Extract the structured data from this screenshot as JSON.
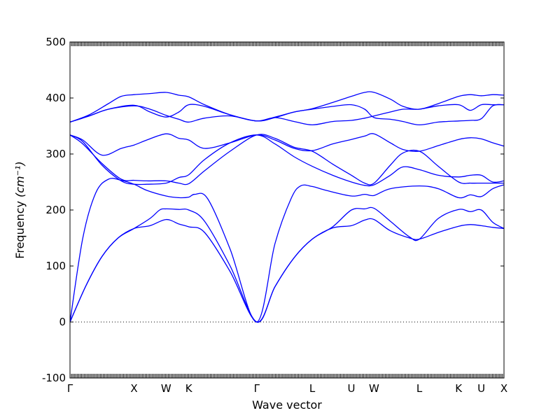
{
  "chart_data": {
    "type": "line",
    "xlabel": "Wave vector",
    "ylabel_text": "Frequency",
    "ylabel_unit": "(cm⁻¹)",
    "ylim": [
      -100,
      500
    ],
    "yticks": [
      -100,
      0,
      100,
      200,
      300,
      400,
      500
    ],
    "zero_line": true,
    "line_color": "#0000ff",
    "kpoints": [
      {
        "label": "Γ",
        "x": 0.0
      },
      {
        "label": "X",
        "x": 1.0
      },
      {
        "label": "W",
        "x": 1.5
      },
      {
        "label": "K",
        "x": 1.854
      },
      {
        "label": "Γ",
        "x": 2.915
      },
      {
        "label": "L",
        "x": 3.781
      },
      {
        "label": "U",
        "x": 4.393
      },
      {
        "label": "W",
        "x": 4.747
      },
      {
        "label": "L",
        "x": 5.454
      },
      {
        "label": "K",
        "x": 6.067
      },
      {
        "label": "U",
        "x": 6.421
      },
      {
        "label": "X",
        "x": 6.775
      }
    ],
    "series": [
      {
        "values": [
          [
            0,
            0
          ],
          [
            0.25,
            65
          ],
          [
            0.5,
            117
          ],
          [
            0.75,
            150
          ],
          [
            1,
            167
          ],
          [
            1.25,
            172
          ],
          [
            1.5,
            183
          ],
          [
            1.7,
            175
          ],
          [
            1.854,
            170
          ],
          [
            2.1,
            160
          ],
          [
            2.5,
            90
          ],
          [
            2.915,
            0
          ],
          [
            3.2,
            63
          ],
          [
            3.5,
            115
          ],
          [
            3.781,
            148
          ],
          [
            4.1,
            168
          ],
          [
            4.393,
            172
          ],
          [
            4.6,
            182
          ],
          [
            4.747,
            183
          ],
          [
            5.0,
            163
          ],
          [
            5.3,
            150
          ],
          [
            5.454,
            148
          ],
          [
            5.75,
            160
          ],
          [
            6.067,
            171
          ],
          [
            6.25,
            174
          ],
          [
            6.421,
            172
          ],
          [
            6.6,
            169
          ],
          [
            6.775,
            167
          ]
        ]
      },
      {
        "values": [
          [
            0,
            0
          ],
          [
            0.25,
            65
          ],
          [
            0.5,
            117
          ],
          [
            0.75,
            150
          ],
          [
            1,
            167
          ],
          [
            1.25,
            185
          ],
          [
            1.4,
            200
          ],
          [
            1.5,
            202
          ],
          [
            1.7,
            201
          ],
          [
            1.854,
            200
          ],
          [
            2.1,
            180
          ],
          [
            2.5,
            100
          ],
          [
            2.915,
            0
          ],
          [
            3.2,
            63
          ],
          [
            3.5,
            115
          ],
          [
            3.781,
            148
          ],
          [
            4.1,
            170
          ],
          [
            4.393,
            200
          ],
          [
            4.6,
            202
          ],
          [
            4.747,
            203
          ],
          [
            5.0,
            180
          ],
          [
            5.3,
            152
          ],
          [
            5.454,
            148
          ],
          [
            5.75,
            185
          ],
          [
            6.067,
            201
          ],
          [
            6.25,
            197
          ],
          [
            6.421,
            200
          ],
          [
            6.6,
            178
          ],
          [
            6.775,
            167
          ]
        ]
      },
      {
        "values": [
          [
            0,
            0
          ],
          [
            0.2,
            150
          ],
          [
            0.4,
            230
          ],
          [
            0.6,
            255
          ],
          [
            0.8,
            253
          ],
          [
            1,
            246
          ],
          [
            1.2,
            235
          ],
          [
            1.5,
            225
          ],
          [
            1.7,
            222
          ],
          [
            1.854,
            223
          ],
          [
            1.95,
            228
          ],
          [
            2.15,
            220
          ],
          [
            2.5,
            130
          ],
          [
            2.915,
            0
          ],
          [
            3.2,
            140
          ],
          [
            3.45,
            220
          ],
          [
            3.6,
            243
          ],
          [
            3.781,
            242
          ],
          [
            4.0,
            235
          ],
          [
            4.393,
            225
          ],
          [
            4.6,
            228
          ],
          [
            4.747,
            226
          ],
          [
            5.0,
            238
          ],
          [
            5.454,
            243
          ],
          [
            5.75,
            238
          ],
          [
            6.067,
            222
          ],
          [
            6.25,
            227
          ],
          [
            6.421,
            224
          ],
          [
            6.6,
            238
          ],
          [
            6.775,
            245
          ]
        ]
      },
      {
        "values": [
          [
            0,
            334
          ],
          [
            0.2,
            322
          ],
          [
            0.5,
            280
          ],
          [
            0.8,
            252
          ],
          [
            1,
            246
          ],
          [
            1.2,
            246
          ],
          [
            1.5,
            248
          ],
          [
            1.7,
            258
          ],
          [
            1.854,
            263
          ],
          [
            2.1,
            290
          ],
          [
            2.5,
            320
          ],
          [
            2.915,
            334
          ],
          [
            3.2,
            318
          ],
          [
            3.5,
            295
          ],
          [
            3.781,
            278
          ],
          [
            4.1,
            262
          ],
          [
            4.393,
            250
          ],
          [
            4.6,
            244
          ],
          [
            4.747,
            245
          ],
          [
            5.0,
            262
          ],
          [
            5.2,
            277
          ],
          [
            5.454,
            272
          ],
          [
            5.75,
            262
          ],
          [
            6.067,
            259
          ],
          [
            6.25,
            262
          ],
          [
            6.421,
            262
          ],
          [
            6.6,
            250
          ],
          [
            6.775,
            252
          ]
        ]
      },
      {
        "values": [
          [
            0,
            334
          ],
          [
            0.2,
            325
          ],
          [
            0.5,
            298
          ],
          [
            0.8,
            310
          ],
          [
            1,
            316
          ],
          [
            1.2,
            325
          ],
          [
            1.5,
            336
          ],
          [
            1.7,
            328
          ],
          [
            1.854,
            325
          ],
          [
            2.1,
            310
          ],
          [
            2.5,
            320
          ],
          [
            2.915,
            334
          ],
          [
            3.2,
            325
          ],
          [
            3.5,
            310
          ],
          [
            3.781,
            306
          ],
          [
            4.1,
            318
          ],
          [
            4.393,
            326
          ],
          [
            4.6,
            332
          ],
          [
            4.747,
            336
          ],
          [
            5.0,
            320
          ],
          [
            5.2,
            308
          ],
          [
            5.454,
            305
          ],
          [
            5.75,
            315
          ],
          [
            6.067,
            326
          ],
          [
            6.25,
            329
          ],
          [
            6.421,
            327
          ],
          [
            6.6,
            320
          ],
          [
            6.775,
            314
          ]
        ]
      },
      {
        "values": [
          [
            0,
            334
          ],
          [
            0.2,
            318
          ],
          [
            0.5,
            283
          ],
          [
            0.8,
            255
          ],
          [
            1,
            253
          ],
          [
            1.2,
            252
          ],
          [
            1.5,
            252
          ],
          [
            1.7,
            248
          ],
          [
            1.854,
            247
          ],
          [
            2.1,
            270
          ],
          [
            2.5,
            305
          ],
          [
            2.915,
            334
          ],
          [
            3.2,
            328
          ],
          [
            3.5,
            312
          ],
          [
            3.781,
            305
          ],
          [
            4.1,
            282
          ],
          [
            4.393,
            262
          ],
          [
            4.6,
            248
          ],
          [
            4.747,
            248
          ],
          [
            5.0,
            280
          ],
          [
            5.2,
            302
          ],
          [
            5.454,
            305
          ],
          [
            5.75,
            278
          ],
          [
            6.067,
            250
          ],
          [
            6.25,
            248
          ],
          [
            6.421,
            248
          ],
          [
            6.6,
            248
          ],
          [
            6.775,
            248
          ]
        ]
      },
      {
        "values": [
          [
            0,
            357
          ],
          [
            0.3,
            368
          ],
          [
            0.6,
            380
          ],
          [
            1,
            387
          ],
          [
            1.25,
            375
          ],
          [
            1.5,
            366
          ],
          [
            1.7,
            375
          ],
          [
            1.854,
            388
          ],
          [
            2.1,
            385
          ],
          [
            2.5,
            370
          ],
          [
            2.915,
            359
          ],
          [
            3.2,
            365
          ],
          [
            3.5,
            375
          ],
          [
            3.781,
            380
          ],
          [
            4.1,
            385
          ],
          [
            4.393,
            388
          ],
          [
            4.6,
            380
          ],
          [
            4.747,
            365
          ],
          [
            5.0,
            362
          ],
          [
            5.2,
            358
          ],
          [
            5.454,
            352
          ],
          [
            5.75,
            357
          ],
          [
            6.067,
            359
          ],
          [
            6.25,
            360
          ],
          [
            6.421,
            363
          ],
          [
            6.6,
            386
          ],
          [
            6.775,
            388
          ]
        ]
      },
      {
        "values": [
          [
            0,
            357
          ],
          [
            0.3,
            368
          ],
          [
            0.6,
            380
          ],
          [
            1,
            386
          ],
          [
            1.25,
            380
          ],
          [
            1.5,
            369
          ],
          [
            1.7,
            362
          ],
          [
            1.854,
            357
          ],
          [
            2.1,
            364
          ],
          [
            2.5,
            368
          ],
          [
            2.915,
            359
          ],
          [
            3.2,
            365
          ],
          [
            3.5,
            358
          ],
          [
            3.781,
            352
          ],
          [
            4.1,
            358
          ],
          [
            4.393,
            360
          ],
          [
            4.6,
            364
          ],
          [
            4.747,
            368
          ],
          [
            5.0,
            375
          ],
          [
            5.2,
            380
          ],
          [
            5.454,
            380
          ],
          [
            5.75,
            386
          ],
          [
            6.067,
            388
          ],
          [
            6.25,
            378
          ],
          [
            6.421,
            388
          ],
          [
            6.6,
            388
          ],
          [
            6.775,
            388
          ]
        ]
      },
      {
        "values": [
          [
            0,
            357
          ],
          [
            0.3,
            370
          ],
          [
            0.6,
            390
          ],
          [
            0.8,
            403
          ],
          [
            1,
            406
          ],
          [
            1.25,
            408
          ],
          [
            1.5,
            410
          ],
          [
            1.7,
            405
          ],
          [
            1.854,
            402
          ],
          [
            2.1,
            388
          ],
          [
            2.5,
            370
          ],
          [
            2.915,
            359
          ],
          [
            3.2,
            366
          ],
          [
            3.5,
            375
          ],
          [
            3.781,
            381
          ],
          [
            4.1,
            392
          ],
          [
            4.393,
            403
          ],
          [
            4.6,
            410
          ],
          [
            4.747,
            410
          ],
          [
            5.0,
            398
          ],
          [
            5.2,
            385
          ],
          [
            5.454,
            380
          ],
          [
            5.75,
            390
          ],
          [
            6.067,
            403
          ],
          [
            6.25,
            406
          ],
          [
            6.421,
            404
          ],
          [
            6.6,
            406
          ],
          [
            6.775,
            405
          ]
        ]
      }
    ]
  }
}
